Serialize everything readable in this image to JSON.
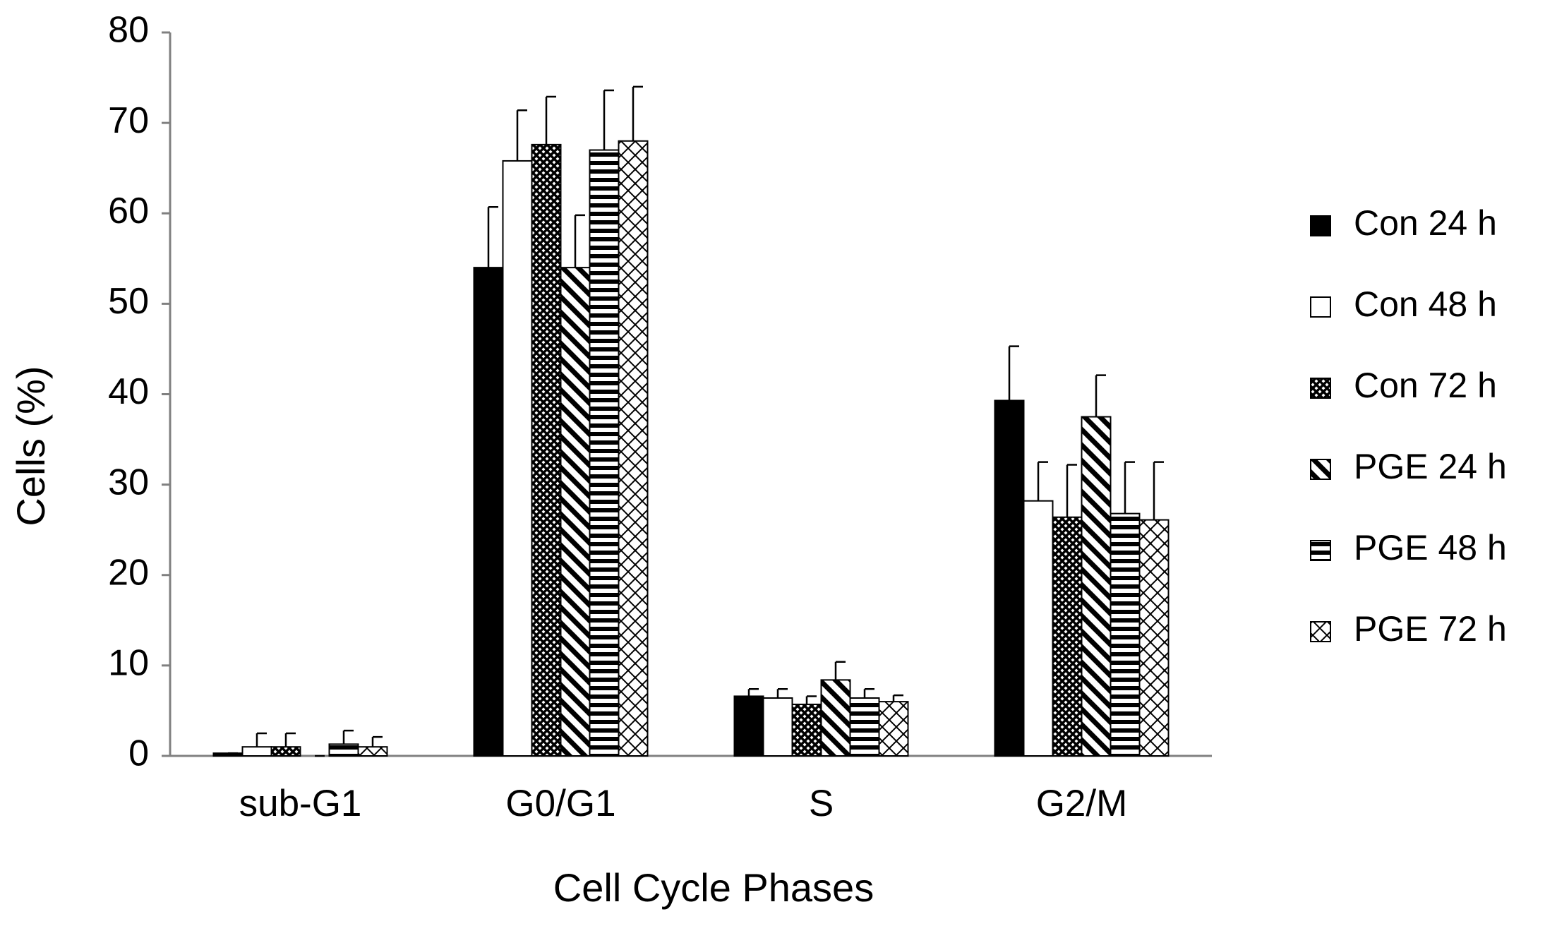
{
  "chart_data": {
    "type": "bar",
    "x_label": "Cell Cycle Phases",
    "y_label": "Cells (%)",
    "categories": [
      "sub-G1",
      "G0/G1",
      "S",
      "G2/M"
    ],
    "series": [
      {
        "name": "Con 24 h",
        "color": "#000000",
        "pattern": "solid",
        "values": [
          0.3,
          54,
          6.6,
          39.3
        ],
        "errors": [
          0,
          6.7,
          0.8,
          6
        ]
      },
      {
        "name": "Con 48 h",
        "color": "#ffffff",
        "pattern": "solid",
        "values": [
          1.0,
          65.8,
          6.4,
          28.2
        ],
        "errors": [
          1.5,
          5.6,
          1.0,
          4.3
        ]
      },
      {
        "name": "Con 72 h",
        "color": "#000000",
        "pattern": "crosshatch-dense",
        "values": [
          1.0,
          67.6,
          5.7,
          26.4
        ],
        "errors": [
          1.5,
          5.3,
          0.9,
          5.8
        ]
      },
      {
        "name": "PGE 24 h",
        "color": "#000000",
        "pattern": "diagonal",
        "values": [
          0,
          54,
          8.4,
          37.5
        ],
        "errors": [
          0,
          5.8,
          2.0,
          4.6
        ]
      },
      {
        "name": "PGE 48 h",
        "color": "#000000",
        "pattern": "horizontal",
        "values": [
          1.3,
          67,
          6.4,
          26.8
        ],
        "errors": [
          1.5,
          6.6,
          1.0,
          5.7
        ]
      },
      {
        "name": "PGE 72 h",
        "color": "#000000",
        "pattern": "crosshatch",
        "values": [
          1.0,
          68,
          6.0,
          26.1
        ],
        "errors": [
          1.1,
          6,
          0.7,
          6.4
        ]
      }
    ],
    "ylim": [
      0,
      80
    ],
    "yticks": [
      0,
      10,
      20,
      30,
      40,
      50,
      60,
      70,
      80
    ],
    "grid": false,
    "legend": "right"
  }
}
